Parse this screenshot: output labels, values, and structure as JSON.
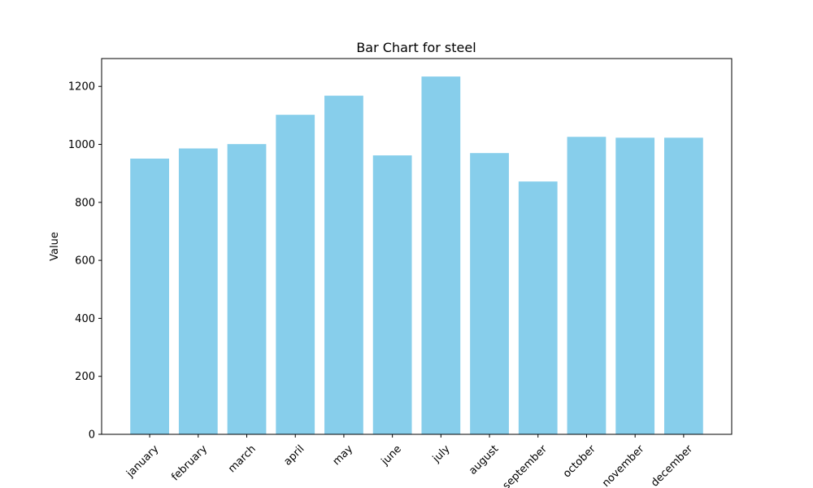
{
  "chart_data": {
    "type": "bar",
    "title": "Bar Chart for steel",
    "xlabel": "",
    "ylabel": "Value",
    "categories": [
      "january",
      "february",
      "march",
      "april",
      "may",
      "june",
      "july",
      "august",
      "september",
      "october",
      "november",
      "december"
    ],
    "values": [
      951,
      986,
      1001,
      1102,
      1168,
      962,
      1234,
      970,
      872,
      1026,
      1023,
      1023
    ],
    "ylim": [
      0,
      1296
    ],
    "yticks": [
      0,
      200,
      400,
      600,
      800,
      1000,
      1200
    ],
    "grid": false,
    "legend": "none",
    "bar_color": "#87CEEB"
  }
}
